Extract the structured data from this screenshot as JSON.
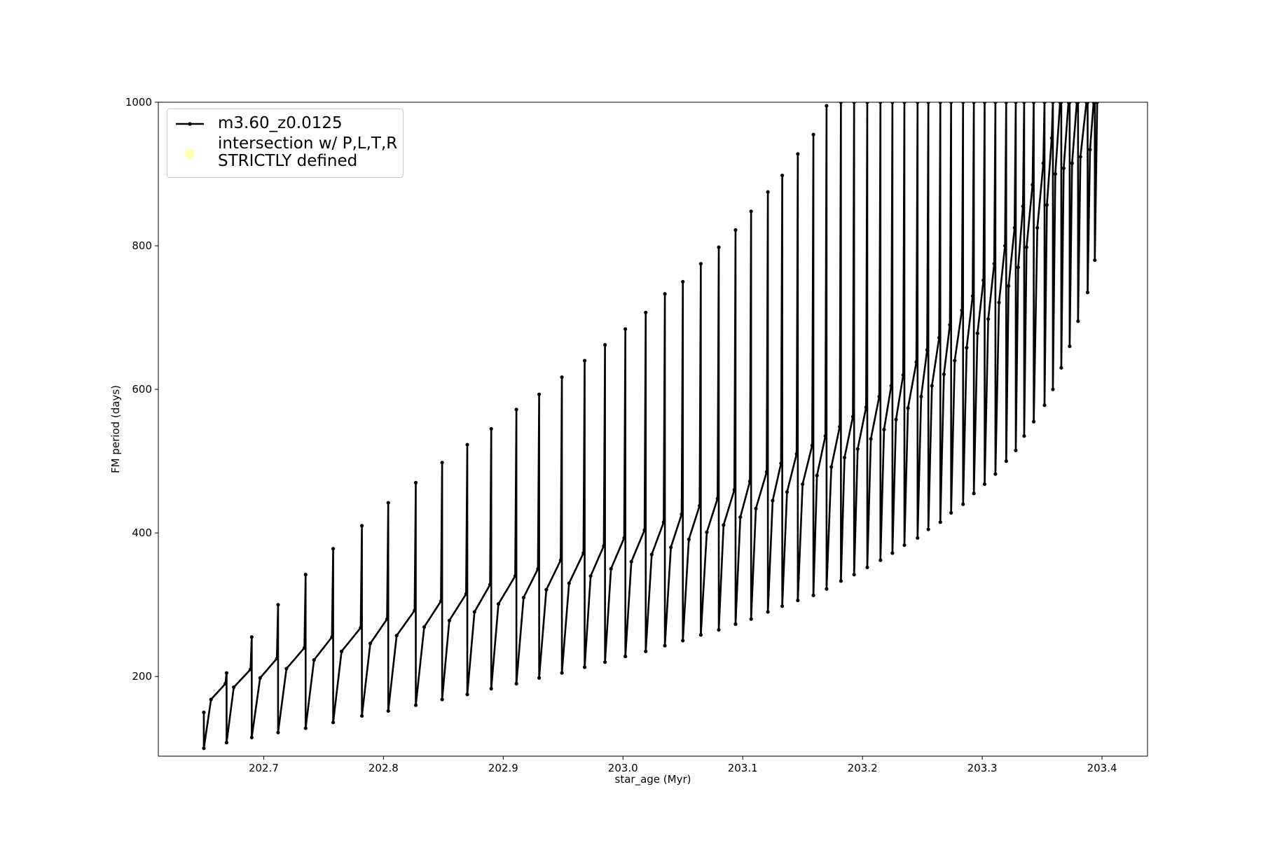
{
  "chart_data": {
    "type": "line",
    "xlabel": "star_age (Myr)",
    "ylabel": "FM period (days)",
    "xlim": [
      202.612,
      203.438
    ],
    "ylim": [
      89,
      1000
    ],
    "xticks": [
      202.7,
      202.8,
      202.9,
      {
        "value": 203,
        "label": "203.0"
      },
      203.1,
      203.2,
      203.3,
      203.4
    ],
    "yticks": [
      200,
      400,
      600,
      800,
      1000
    ],
    "grid": false,
    "legend": "upper left",
    "series": [
      {
        "name": "m3.60_z0.0125",
        "color": "#000000",
        "x": [
          202.65,
          202.65,
          202.656,
          202.668,
          202.669,
          202.669,
          202.675,
          202.689,
          202.69,
          202.69,
          202.697,
          202.711,
          202.712,
          202.712,
          202.719,
          202.734,
          202.735,
          202.735,
          202.742,
          202.757,
          202.758,
          202.758,
          202.765,
          202.781,
          202.782,
          202.782,
          202.789,
          202.803,
          202.804,
          202.804,
          202.811,
          202.826,
          202.827,
          202.827,
          202.834,
          202.848,
          202.849,
          202.849,
          202.855,
          202.869,
          202.87,
          202.87,
          202.876,
          202.889,
          202.89,
          202.89,
          202.896,
          202.91,
          202.911,
          202.911,
          202.917,
          202.929,
          202.93,
          202.93,
          202.936,
          202.948,
          202.949,
          202.949,
          202.955,
          202.967,
          202.968,
          202.968,
          202.973,
          202.984,
          202.985,
          202.985,
          202.99,
          203.001,
          203.002,
          203.002,
          203.007,
          203.018,
          203.019,
          203.019,
          203.024,
          203.034,
          203.035,
          203.035,
          203.04,
          203.049,
          203.05,
          203.05,
          203.055,
          203.064,
          203.065,
          203.065,
          203.07,
          203.079,
          203.08,
          203.08,
          203.084,
          203.093,
          203.094,
          203.094,
          203.098,
          203.106,
          203.107,
          203.107,
          203.111,
          203.12,
          203.121,
          203.121,
          203.125,
          203.132,
          203.133,
          203.133,
          203.137,
          203.145,
          203.146,
          203.146,
          203.15,
          203.158,
          203.159,
          203.159,
          203.162,
          203.169,
          203.17,
          203.17,
          203.174,
          203.181,
          203.182,
          203.182,
          203.185,
          203.192,
          203.193,
          203.193,
          203.196,
          203.203,
          203.204,
          203.204,
          203.207,
          203.214,
          203.215,
          203.215,
          203.218,
          203.224,
          203.225,
          203.225,
          203.228,
          203.234,
          203.235,
          203.235,
          203.238,
          203.245,
          203.246,
          203.246,
          203.249,
          203.254,
          203.255,
          203.255,
          203.258,
          203.264,
          203.265,
          203.265,
          203.268,
          203.273,
          203.274,
          203.274,
          203.277,
          203.283,
          203.284,
          203.284,
          203.287,
          203.292,
          203.293,
          203.293,
          203.296,
          203.301,
          203.302,
          203.302,
          203.305,
          203.31,
          203.311,
          203.311,
          203.314,
          203.319,
          203.32,
          203.32,
          203.322,
          203.327,
          203.328,
          203.328,
          203.33,
          203.334,
          203.335,
          203.335,
          203.337,
          203.342,
          203.343,
          203.343,
          203.346,
          203.351,
          203.352,
          203.352,
          203.354,
          203.358,
          203.359,
          203.359,
          203.361,
          203.365,
          203.366,
          203.366,
          203.368,
          203.372,
          203.373,
          203.373,
          203.375,
          203.379,
          203.38,
          203.38,
          203.382,
          203.387,
          203.388,
          203.388,
          203.39,
          203.393,
          203.394,
          203.394,
          203.396
        ],
        "values": [
          150,
          100,
          168,
          190,
          205,
          108,
          185,
          210,
          255,
          115,
          198,
          225,
          300,
          122,
          211,
          240,
          342,
          128,
          223,
          255,
          378,
          136,
          235,
          268,
          410,
          145,
          246,
          280,
          442,
          152,
          257,
          292,
          470,
          160,
          269,
          305,
          498,
          168,
          278,
          315,
          523,
          175,
          290,
          328,
          545,
          183,
          301,
          340,
          572,
          190,
          310,
          350,
          593,
          198,
          321,
          362,
          617,
          205,
          330,
          372,
          640,
          213,
          340,
          382,
          662,
          220,
          350,
          393,
          684,
          228,
          360,
          404,
          707,
          235,
          370,
          415,
          733,
          243,
          380,
          426,
          750,
          250,
          391,
          438,
          775,
          258,
          401,
          448,
          798,
          265,
          411,
          460,
          822,
          273,
          422,
          472,
          848,
          280,
          434,
          485,
          875,
          290,
          445,
          497,
          898,
          298,
          457,
          510,
          928,
          306,
          468,
          522,
          955,
          313,
          480,
          535,
          995,
          322,
          492,
          548,
          1000,
          333,
          505,
          562,
          1000,
          342,
          517,
          575,
          1000,
          352,
          531,
          590,
          1000,
          362,
          544,
          605,
          1000,
          372,
          558,
          620,
          1000,
          383,
          574,
          638,
          1000,
          393,
          590,
          655,
          1000,
          405,
          605,
          672,
          1000,
          415,
          621,
          690,
          1000,
          428,
          640,
          710,
          1000,
          440,
          658,
          730,
          1000,
          455,
          678,
          752,
          1000,
          468,
          698,
          775,
          1000,
          482,
          721,
          800,
          1000,
          500,
          744,
          825,
          1000,
          515,
          770,
          855,
          1000,
          535,
          798,
          885,
          1000,
          555,
          825,
          915,
          1000,
          578,
          857,
          950,
          1000,
          600,
          900,
          1000,
          1000,
          630,
          908,
          1000,
          1000,
          660,
          915,
          1000,
          1000,
          695,
          924,
          1000,
          1000,
          735,
          934,
          1000,
          1000,
          780,
          1000
        ]
      },
      {
        "name": "intersection w/ P,L,T,R\nSTRICTLY defined",
        "color": "#ffffb0",
        "x": [],
        "values": []
      }
    ]
  }
}
